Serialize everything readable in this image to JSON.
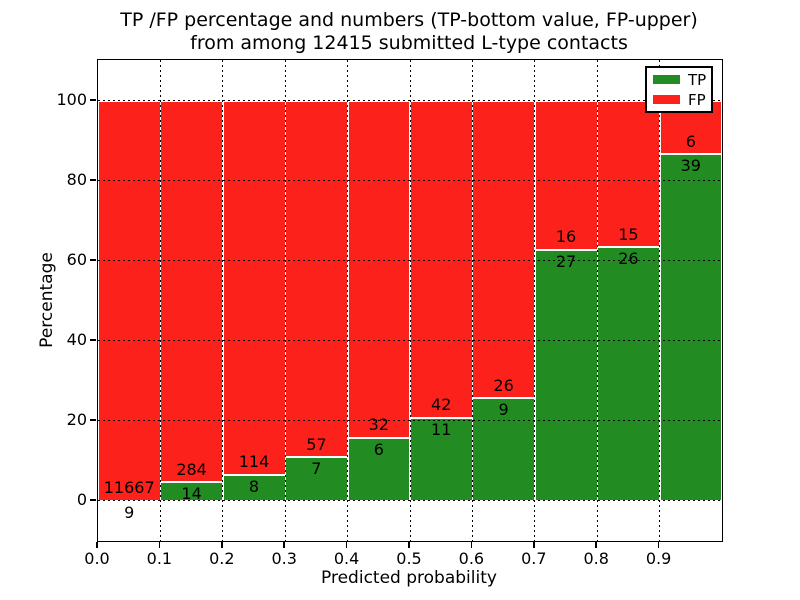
{
  "figure": {
    "background": "#ffffff",
    "title_line1": "TP /FP percentage and numbers (TP-bottom value, FP-upper)",
    "title_line2": "from among 12415 submitted L-type contacts"
  },
  "chart_data": {
    "type": "bar",
    "subtype": "stacked-percentage",
    "title": "TP /FP percentage and numbers (TP-bottom value, FP-upper) from among 12415 submitted L-type contacts",
    "xlabel": "Predicted probability",
    "ylabel": "Percentage",
    "total_contacts": 12415,
    "bin_width": 0.1,
    "categories": [
      "0.0-0.1",
      "0.1-0.2",
      "0.2-0.3",
      "0.3-0.4",
      "0.4-0.5",
      "0.5-0.6",
      "0.6-0.7",
      "0.7-0.8",
      "0.8-0.9",
      "0.9-1.0"
    ],
    "x_tick_labels": [
      "0.0",
      "0.1",
      "0.2",
      "0.3",
      "0.4",
      "0.5",
      "0.6",
      "0.7",
      "0.8",
      "0.9"
    ],
    "y_ticks": [
      0,
      20,
      40,
      60,
      80,
      100
    ],
    "xlim": [
      0.0,
      1.0
    ],
    "ylim": [
      -10,
      110
    ],
    "grid": true,
    "series": [
      {
        "name": "TP",
        "color": "#228b22",
        "values": [
          9,
          14,
          8,
          7,
          6,
          11,
          9,
          27,
          26,
          39
        ]
      },
      {
        "name": "FP",
        "color": "#fd211b",
        "values": [
          11667,
          284,
          114,
          57,
          32,
          42,
          26,
          16,
          15,
          6
        ]
      }
    ],
    "tp_percentages": [
      0.08,
      4.7,
      6.56,
      10.94,
      15.79,
      20.75,
      25.71,
      62.79,
      63.41,
      86.67
    ],
    "legend": {
      "position": "upper right",
      "entries": [
        "TP",
        "FP"
      ]
    }
  }
}
